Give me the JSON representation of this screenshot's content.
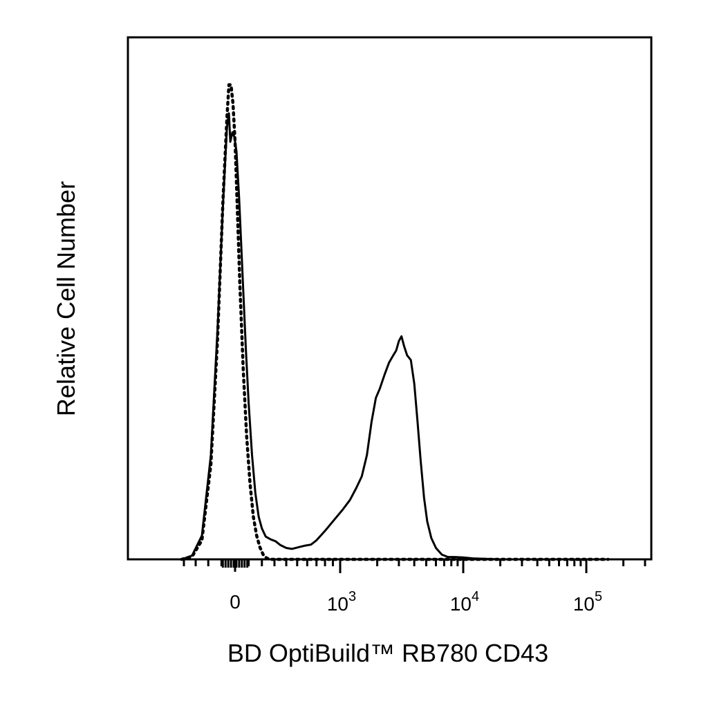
{
  "chart_data": {
    "type": "line",
    "title": "",
    "xlabel": "BD OptiBuild™ RB780 CD43",
    "ylabel": "Relative Cell Number",
    "x_scale": "biexponential",
    "x_ticks": [
      {
        "value": 0,
        "base": "0",
        "exp": ""
      },
      {
        "value": 1000,
        "base": "10",
        "exp": "3"
      },
      {
        "value": 10000,
        "base": "10",
        "exp": "4"
      },
      {
        "value": 100000,
        "base": "10",
        "exp": "5"
      }
    ],
    "grid": false,
    "legend": "none",
    "colors": {
      "line": "#000000",
      "axis": "#000000",
      "background": "#ffffff"
    },
    "series": [
      {
        "style": "solid",
        "points": [
          [
            -420,
            0
          ],
          [
            -330,
            0.8
          ],
          [
            -250,
            5
          ],
          [
            -180,
            22
          ],
          [
            -130,
            48
          ],
          [
            -90,
            74
          ],
          [
            -60,
            91
          ],
          [
            -45,
            94
          ],
          [
            -35,
            88
          ],
          [
            -20,
            90
          ],
          [
            -5,
            89
          ],
          [
            10,
            86
          ],
          [
            30,
            76
          ],
          [
            55,
            60
          ],
          [
            80,
            44
          ],
          [
            100,
            33
          ],
          [
            125,
            22
          ],
          [
            150,
            14
          ],
          [
            175,
            9
          ],
          [
            200,
            6.5
          ],
          [
            230,
            4.8
          ],
          [
            270,
            4.2
          ],
          [
            310,
            3.8
          ],
          [
            350,
            3.0
          ],
          [
            400,
            2.4
          ],
          [
            450,
            2.2
          ],
          [
            520,
            2.6
          ],
          [
            580,
            2.9
          ],
          [
            640,
            3.1
          ],
          [
            700,
            4.0
          ],
          [
            800,
            6.0
          ],
          [
            900,
            8.0
          ],
          [
            1050,
            10.5
          ],
          [
            1200,
            12.5
          ],
          [
            1350,
            15
          ],
          [
            1500,
            17.5
          ],
          [
            1650,
            22
          ],
          [
            1800,
            29
          ],
          [
            1950,
            34
          ],
          [
            2100,
            36
          ],
          [
            2300,
            39
          ],
          [
            2500,
            41.5
          ],
          [
            2700,
            43
          ],
          [
            2850,
            44
          ],
          [
            3000,
            46
          ],
          [
            3150,
            47
          ],
          [
            3300,
            45
          ],
          [
            3500,
            43
          ],
          [
            3750,
            42
          ],
          [
            4000,
            37
          ],
          [
            4250,
            29
          ],
          [
            4500,
            21
          ],
          [
            4800,
            13
          ],
          [
            5100,
            8
          ],
          [
            5500,
            4.5
          ],
          [
            6000,
            2.4
          ],
          [
            6700,
            1.0
          ],
          [
            7500,
            0.5
          ],
          [
            8500,
            0.5
          ],
          [
            10000,
            0.4
          ],
          [
            12000,
            0.2
          ],
          [
            15000,
            0.1
          ],
          [
            20000,
            0
          ],
          [
            50000,
            0
          ],
          [
            150000,
            0
          ]
        ]
      },
      {
        "style": "dotted",
        "points": [
          [
            -420,
            0
          ],
          [
            -330,
            0.6
          ],
          [
            -250,
            4
          ],
          [
            -180,
            20
          ],
          [
            -130,
            46
          ],
          [
            -90,
            75
          ],
          [
            -60,
            93
          ],
          [
            -45,
            100
          ],
          [
            -30,
            100
          ],
          [
            -15,
            96
          ],
          [
            0,
            88
          ],
          [
            15,
            75
          ],
          [
            35,
            58
          ],
          [
            60,
            40
          ],
          [
            85,
            26
          ],
          [
            110,
            16
          ],
          [
            135,
            9
          ],
          [
            160,
            5
          ],
          [
            185,
            2.5
          ],
          [
            210,
            1.0
          ],
          [
            235,
            0.3
          ],
          [
            260,
            0
          ],
          [
            400,
            0
          ],
          [
            1000,
            0
          ],
          [
            10000,
            0
          ],
          [
            150000,
            0
          ]
        ]
      }
    ],
    "ylim": [
      0,
      110
    ]
  }
}
